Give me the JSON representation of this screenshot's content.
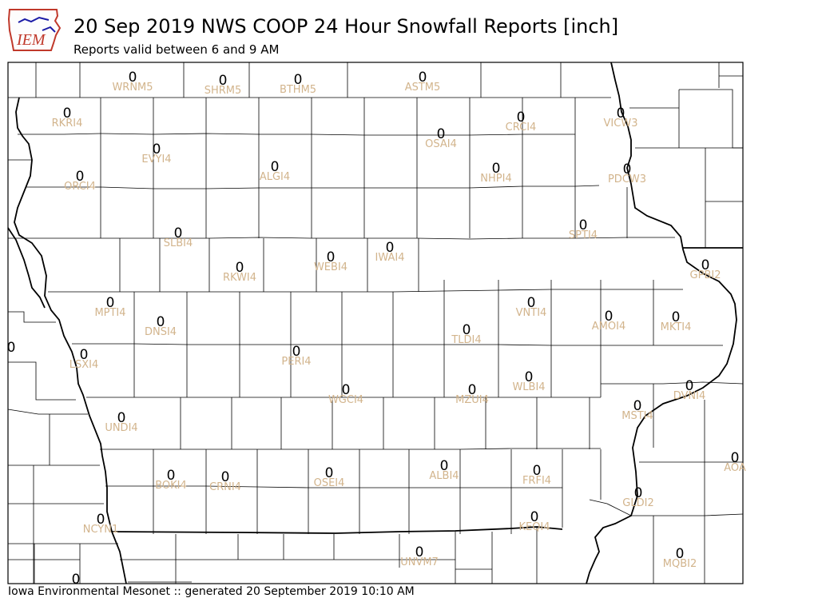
{
  "header": {
    "title": "20 Sep 2019 NWS COOP 24 Hour Snowfall Reports [inch]",
    "subtitle": "Reports valid between 6 and 9 AM"
  },
  "logo": {
    "text": "IEM",
    "icon": "iowa-state-outline-icon"
  },
  "footer": {
    "text": "Iowa Environmental Mesonet :: generated 20 September 2019 10:10 AM"
  },
  "colors": {
    "value_text": "#000000",
    "station_label": "#d2b48c",
    "border": "#000000",
    "logo_blue": "#1a1aa6",
    "logo_red": "#c0392b"
  },
  "stations": [
    {
      "id": "WRNM5",
      "value": "0"
    },
    {
      "id": "SHRM5",
      "value": "0"
    },
    {
      "id": "BTHM5",
      "value": "0"
    },
    {
      "id": "ASTM5",
      "value": "0"
    },
    {
      "id": "RKRI4",
      "value": "0"
    },
    {
      "id": "CRCI4",
      "value": "0"
    },
    {
      "id": "VICW3",
      "value": "0"
    },
    {
      "id": "OSAI4",
      "value": "0"
    },
    {
      "id": "EVYI4",
      "value": "0"
    },
    {
      "id": "ORCI4",
      "value": "0"
    },
    {
      "id": "ALGI4",
      "value": "0"
    },
    {
      "id": "NHPI4",
      "value": "0"
    },
    {
      "id": "PDCW3",
      "value": "0"
    },
    {
      "id": "SPTI4",
      "value": "0"
    },
    {
      "id": "SLBI4",
      "value": "0"
    },
    {
      "id": "IWAI4",
      "value": "0"
    },
    {
      "id": "WEBI4",
      "value": "0"
    },
    {
      "id": "RKWI4",
      "value": "0"
    },
    {
      "id": "GPBI2",
      "value": "0"
    },
    {
      "id": "MPTI4",
      "value": "0"
    },
    {
      "id": "VNTI4",
      "value": "0"
    },
    {
      "id": "DNSI4",
      "value": "0"
    },
    {
      "id": "AMOI4",
      "value": "0"
    },
    {
      "id": "MKTI4",
      "value": "0"
    },
    {
      "id": "TLDI4",
      "value": "0"
    },
    {
      "id": "LSXI4",
      "value": "0"
    },
    {
      "id": "PERI4",
      "value": "0"
    },
    {
      "id": "WGCI4",
      "value": "0"
    },
    {
      "id": "MZUI4",
      "value": "0"
    },
    {
      "id": "WLBI4",
      "value": "0"
    },
    {
      "id": "DVNI4",
      "value": "0"
    },
    {
      "id": "MSTI4",
      "value": "0"
    },
    {
      "id": "UNDI4",
      "value": "0"
    },
    {
      "id": "ALBI4",
      "value": "0"
    },
    {
      "id": "FRFI4",
      "value": "0"
    },
    {
      "id": "BOKI4",
      "value": "0"
    },
    {
      "id": "CRNI4",
      "value": "0"
    },
    {
      "id": "OSEI4",
      "value": "0"
    },
    {
      "id": "AOA",
      "value": "0"
    },
    {
      "id": "GLDI2",
      "value": "0"
    },
    {
      "id": "KEQI4",
      "value": "0"
    },
    {
      "id": "NCYN1",
      "value": "0"
    },
    {
      "id": "UNVM7",
      "value": "0"
    },
    {
      "id": "MQBI2",
      "value": "0"
    }
  ],
  "partial_values": [
    {
      "value": "0"
    },
    {
      "value": "0"
    }
  ]
}
